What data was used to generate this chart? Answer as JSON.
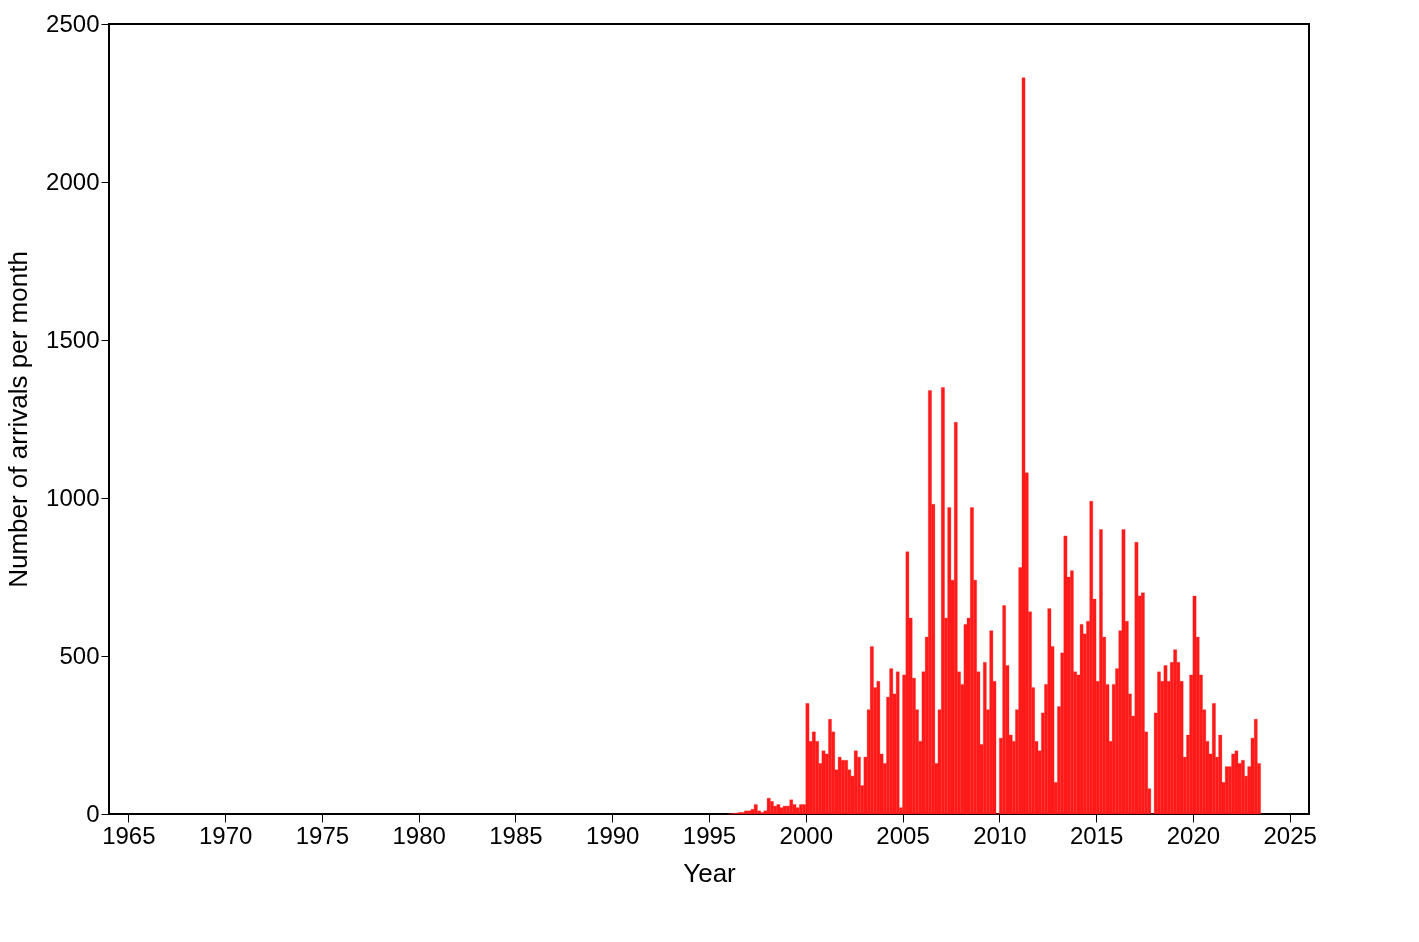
{
  "chart_data": {
    "type": "histogram",
    "xlabel": "Year",
    "ylabel": "Number of arrivals per month",
    "color": "#ff1a1a",
    "bins": [
      1996,
      1996.17,
      1996.33,
      1996.5,
      1996.67,
      1996.83,
      1997,
      1997.17,
      1997.33,
      1997.5,
      1997.67,
      1997.83,
      1998,
      1998.17,
      1998.33,
      1998.5,
      1998.67,
      1998.83,
      1999,
      1999.17,
      1999.33,
      1999.5,
      1999.67,
      1999.83,
      2000,
      2000.17,
      2000.33,
      2000.5,
      2000.67,
      2000.83,
      2001,
      2001.17,
      2001.33,
      2001.5,
      2001.67,
      2001.83,
      2002,
      2002.17,
      2002.33,
      2002.5,
      2002.67,
      2002.83,
      2003,
      2003.17,
      2003.33,
      2003.5,
      2003.67,
      2003.83,
      2004,
      2004.17,
      2004.33,
      2004.5,
      2004.67,
      2004.83,
      2005,
      2005.17,
      2005.33,
      2005.5,
      2005.67,
      2005.83,
      2006,
      2006.17,
      2006.33,
      2006.5,
      2006.67,
      2006.83,
      2007,
      2007.17,
      2007.33,
      2007.5,
      2007.67,
      2007.83,
      2008,
      2008.17,
      2008.33,
      2008.5,
      2008.67,
      2008.83,
      2009,
      2009.17,
      2009.33,
      2009.5,
      2009.67,
      2009.83,
      2010,
      2010.17,
      2010.33,
      2010.5,
      2010.67,
      2010.83,
      2011,
      2011.17,
      2011.33,
      2011.5,
      2011.67,
      2011.83,
      2012,
      2012.17,
      2012.33,
      2012.5,
      2012.67,
      2012.83,
      2013,
      2013.17,
      2013.33,
      2013.5,
      2013.67,
      2013.83,
      2014,
      2014.17,
      2014.33,
      2014.5,
      2014.67,
      2014.83,
      2015,
      2015.17,
      2015.33,
      2015.5,
      2015.67,
      2015.83,
      2016,
      2016.17,
      2016.33,
      2016.5,
      2016.67,
      2016.83,
      2017,
      2017.17,
      2017.33,
      2017.5,
      2017.67,
      2017.83,
      2018,
      2018.17,
      2018.33,
      2018.5,
      2018.67,
      2018.83,
      2019,
      2019.17,
      2019.33,
      2019.5,
      2019.67,
      2019.83,
      2020,
      2020.17,
      2020.33,
      2020.5,
      2020.67,
      2020.83,
      2021,
      2021.17,
      2021.33,
      2021.5,
      2021.67,
      2021.83,
      2022,
      2022.17,
      2022.33,
      2022.5,
      2022.67,
      2022.83,
      2023,
      2023.17,
      2023.33,
      2023.5
    ],
    "values": [
      0,
      2,
      3,
      5,
      5,
      10,
      10,
      15,
      30,
      10,
      5,
      10,
      50,
      40,
      25,
      30,
      20,
      25,
      25,
      45,
      30,
      20,
      30,
      30,
      350,
      230,
      260,
      230,
      160,
      200,
      190,
      300,
      260,
      140,
      180,
      170,
      170,
      140,
      120,
      200,
      180,
      90,
      180,
      330,
      530,
      400,
      420,
      190,
      160,
      370,
      460,
      380,
      450,
      20,
      440,
      830,
      620,
      430,
      330,
      230,
      450,
      560,
      1340,
      980,
      160,
      330,
      1350,
      620,
      970,
      740,
      1240,
      450,
      410,
      600,
      620,
      970,
      740,
      450,
      220,
      480,
      330,
      580,
      420,
      0,
      240,
      660,
      470,
      250,
      230,
      330,
      780,
      2330,
      1080,
      640,
      400,
      230,
      200,
      320,
      410,
      650,
      530,
      100,
      340,
      510,
      880,
      750,
      770,
      450,
      440,
      600,
      570,
      610,
      990,
      680,
      420,
      900,
      560,
      410,
      230,
      410,
      460,
      580,
      900,
      610,
      380,
      310,
      860,
      690,
      700,
      260,
      80,
      0,
      320,
      450,
      420,
      470,
      420,
      480,
      520,
      480,
      420,
      180,
      250,
      440,
      690,
      560,
      440,
      330,
      230,
      190,
      350,
      180,
      250,
      100,
      150,
      150,
      190,
      200,
      160,
      170,
      120,
      150,
      240,
      300,
      160
    ],
    "xlim": [
      1964,
      2026
    ],
    "xticks": [
      1965,
      1970,
      1975,
      1980,
      1985,
      1990,
      1995,
      2000,
      2005,
      2010,
      2015,
      2020,
      2025
    ],
    "ylim": [
      0,
      2500
    ],
    "yticks": [
      0,
      500,
      1000,
      1500,
      2000,
      2500
    ],
    "grid": false
  }
}
